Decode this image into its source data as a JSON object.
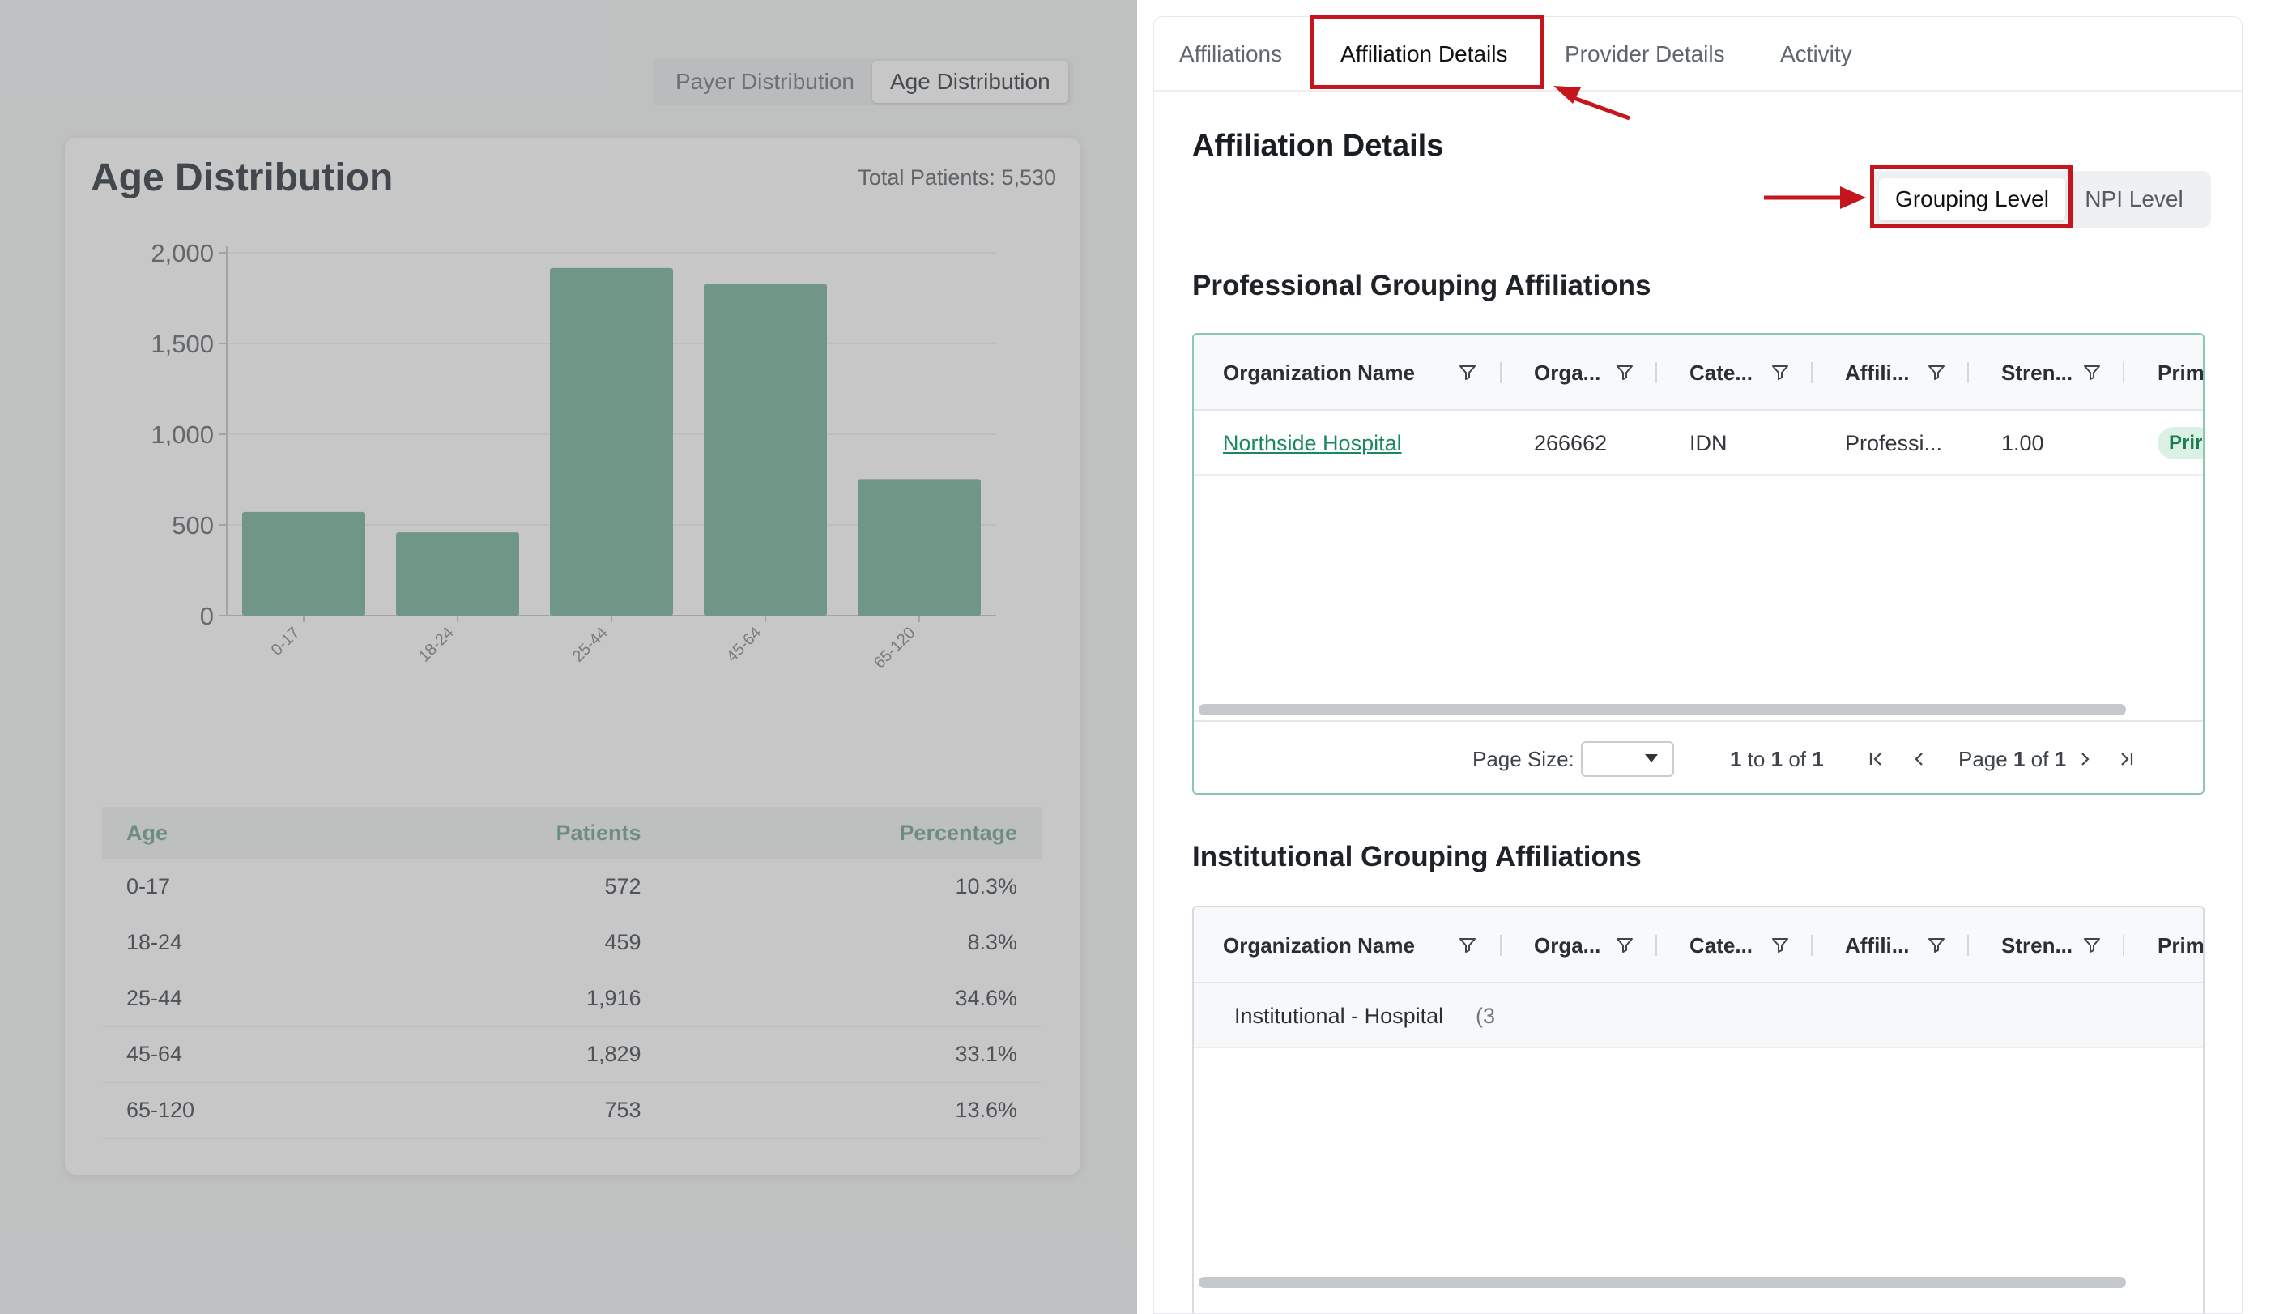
{
  "left": {
    "toggle": [
      "Payer Distribution",
      "Age Distribution"
    ],
    "card_title": "Age Distribution",
    "total": "Total Patients: 5,530",
    "table_headers": [
      "Age",
      "Patients",
      "Percentage"
    ],
    "rows": [
      [
        "0-17",
        "572",
        "10.3%"
      ],
      [
        "18-24",
        "459",
        "8.3%"
      ],
      [
        "25-44",
        "1,916",
        "34.6%"
      ],
      [
        "45-64",
        "1,829",
        "33.1%"
      ],
      [
        "65-120",
        "753",
        "13.6%"
      ]
    ]
  },
  "chart_data": {
    "type": "bar",
    "categories": [
      "0-17",
      "18-24",
      "25-44",
      "45-64",
      "65-120"
    ],
    "values": [
      572,
      459,
      1916,
      1829,
      753
    ],
    "title": "Age Distribution",
    "xlabel": "",
    "ylabel": "",
    "ylim": [
      0,
      2000
    ],
    "yticks": [
      "0",
      "500",
      "1,000",
      "1,500",
      "2,000"
    ],
    "ytick_values": [
      0,
      500,
      1000,
      1500,
      2000
    ],
    "color": "#8fc1ae",
    "grid": true
  },
  "right": {
    "tabs": [
      "Affiliations",
      "Affiliation Details",
      "Provider Details",
      "Activity"
    ],
    "active_tab": "Affiliation Details",
    "title": "Affiliation Details",
    "levels": [
      "Grouping Level",
      "NPI Level"
    ],
    "professional": {
      "title": "Professional Grouping Affiliations",
      "columns": [
        "Organization Name",
        "Orga...",
        "Cate...",
        "Affili...",
        "Stren...",
        "Prim"
      ],
      "row": [
        "Northside Hospital",
        "266662",
        "IDN",
        "Professi...",
        "1.00",
        "Prir"
      ],
      "pager": {
        "page_size_label": "Page Size:",
        "range_from": "1",
        "range_to_word": "to",
        "range_to": "1",
        "range_of_word": "of",
        "range_total": "1",
        "page_word": "Page",
        "page_num": "1",
        "page_of_word": "of",
        "page_total": "1"
      }
    },
    "institutional": {
      "title": "Institutional Grouping Affiliations",
      "columns": [
        "Organization Name",
        "Orga...",
        "Cate...",
        "Affili...",
        "Stren...",
        "Prim"
      ],
      "group_label": "Institutional - Hospital",
      "group_count": "(3"
    }
  },
  "colors": {
    "highlight": "#c4161c",
    "accent": "#1a8a5c",
    "bar": "#8fc1ae",
    "grid_border": "#8cc7b0"
  }
}
